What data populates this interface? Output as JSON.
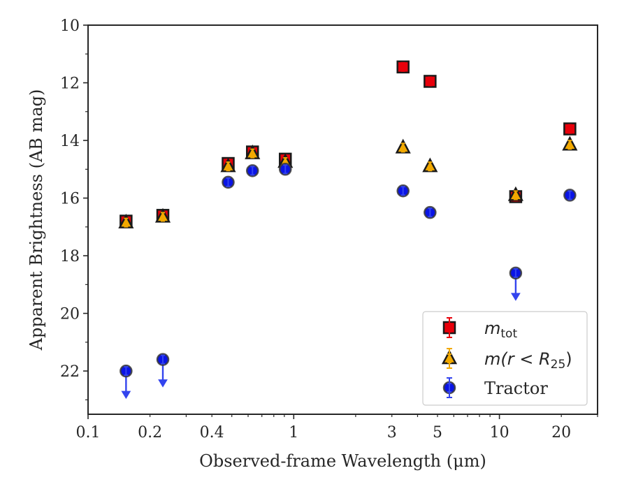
{
  "chart_data": {
    "type": "scatter",
    "title": "",
    "xlabel": "Observed-frame Wavelength (μm)",
    "ylabel": "Apparent Brightness (AB mag)",
    "xscale": "log",
    "xlim": [
      0.1,
      30
    ],
    "ylim": [
      23.5,
      10
    ],
    "y_inverted": true,
    "xticks": [
      0.1,
      0.2,
      0.4,
      1,
      3,
      5,
      10,
      20
    ],
    "xtick_labels": [
      "0.1",
      "0.2",
      "0.4",
      "1",
      "3",
      "5",
      "10",
      "20"
    ],
    "yticks": [
      10,
      12,
      14,
      16,
      18,
      20,
      22
    ],
    "ytick_labels": [
      "10",
      "12",
      "14",
      "16",
      "18",
      "20",
      "22"
    ],
    "grid": false,
    "legend_position": "bottom-right",
    "series": [
      {
        "name": "m_tot",
        "legend_main": "m",
        "legend_sub": "tot",
        "marker": "square",
        "color": "#e8000b",
        "error_color": "#e8000b",
        "points": [
          {
            "x": 0.153,
            "y": 16.8
          },
          {
            "x": 0.231,
            "y": 16.6
          },
          {
            "x": 0.48,
            "y": 14.8
          },
          {
            "x": 0.63,
            "y": 14.4
          },
          {
            "x": 0.91,
            "y": 14.65
          },
          {
            "x": 3.4,
            "y": 11.45
          },
          {
            "x": 4.6,
            "y": 11.95
          },
          {
            "x": 12.0,
            "y": 15.95
          },
          {
            "x": 22.0,
            "y": 13.6
          }
        ]
      },
      {
        "name": "m(r < R_25)",
        "legend_main": "m(r < R",
        "legend_sub": "25",
        "legend_tail": ")",
        "marker": "triangle",
        "color": "#f2a900",
        "error_color": "#f2a900",
        "points": [
          {
            "x": 0.153,
            "y": 16.85
          },
          {
            "x": 0.231,
            "y": 16.65
          },
          {
            "x": 0.48,
            "y": 14.9
          },
          {
            "x": 0.63,
            "y": 14.45
          },
          {
            "x": 0.91,
            "y": 14.75
          },
          {
            "x": 3.4,
            "y": 14.25
          },
          {
            "x": 4.6,
            "y": 14.9
          },
          {
            "x": 12.0,
            "y": 15.9
          },
          {
            "x": 22.0,
            "y": 14.15
          }
        ]
      },
      {
        "name": "Tractor",
        "legend_main": "Tractor",
        "marker": "circle",
        "color": "#0a14e6",
        "error_color": "#3344ee",
        "points": [
          {
            "x": 0.153,
            "y": 22.0,
            "upper_limit": true
          },
          {
            "x": 0.231,
            "y": 21.6,
            "upper_limit": true
          },
          {
            "x": 0.48,
            "y": 15.45
          },
          {
            "x": 0.63,
            "y": 15.05
          },
          {
            "x": 0.91,
            "y": 15.0
          },
          {
            "x": 3.4,
            "y": 15.75
          },
          {
            "x": 4.6,
            "y": 16.5
          },
          {
            "x": 12.0,
            "y": 18.6,
            "upper_limit": true
          },
          {
            "x": 22.0,
            "y": 15.9
          }
        ]
      }
    ]
  }
}
